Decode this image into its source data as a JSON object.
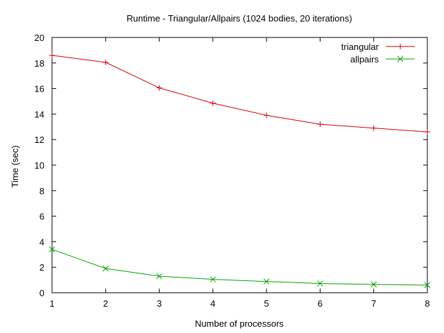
{
  "chart_data": {
    "type": "line",
    "title": "Runtime - Triangular/Allpairs (1024 bodies, 20 iterations)",
    "xlabel": "Number of processors",
    "ylabel": "Time (sec)",
    "x": [
      1,
      2,
      3,
      4,
      5,
      6,
      7,
      8
    ],
    "xlim": [
      1,
      8
    ],
    "ylim": [
      0,
      20
    ],
    "xticks": [
      "1",
      "2",
      "3",
      "4",
      "5",
      "6",
      "7",
      "8"
    ],
    "yticks": [
      "0",
      "2",
      "4",
      "6",
      "8",
      "10",
      "12",
      "14",
      "16",
      "18",
      "20"
    ],
    "grid": false,
    "legend_position": "top-right",
    "series": [
      {
        "name": "triangular",
        "color": "#cc0000",
        "marker": "plus",
        "values": [
          18.6,
          18.05,
          16.05,
          14.85,
          13.9,
          13.2,
          12.9,
          12.6
        ]
      },
      {
        "name": "allpairs",
        "color": "#00a000",
        "marker": "x",
        "values": [
          3.4,
          1.9,
          1.3,
          1.05,
          0.88,
          0.73,
          0.65,
          0.6
        ]
      }
    ]
  }
}
